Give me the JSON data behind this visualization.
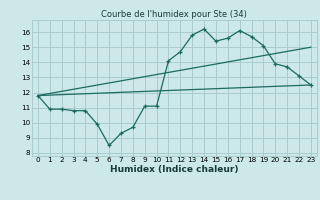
{
  "title": "Courbe de l'humidex pour Ste (34)",
  "xlabel": "Humidex (Indice chaleur)",
  "xlim": [
    -0.5,
    23.5
  ],
  "ylim": [
    7.8,
    16.8
  ],
  "yticks": [
    8,
    9,
    10,
    11,
    12,
    13,
    14,
    15,
    16
  ],
  "xticks": [
    0,
    1,
    2,
    3,
    4,
    5,
    6,
    7,
    8,
    9,
    10,
    11,
    12,
    13,
    14,
    15,
    16,
    17,
    18,
    19,
    20,
    21,
    22,
    23
  ],
  "bg_color": "#cce8e8",
  "grid_color": "#aacccc",
  "line_color": "#1a6b60",
  "line1_x": [
    0,
    1,
    2,
    3,
    4,
    5,
    6,
    7,
    8,
    9,
    10,
    11,
    12,
    13,
    14,
    15,
    16,
    17,
    18,
    19,
    20,
    21,
    22,
    23
  ],
  "line1_y": [
    11.8,
    10.9,
    10.9,
    10.8,
    10.8,
    9.9,
    8.5,
    9.3,
    9.7,
    11.1,
    11.1,
    14.1,
    14.7,
    15.8,
    16.2,
    15.4,
    15.6,
    16.1,
    15.7,
    15.1,
    13.9,
    13.7,
    13.1,
    12.5
  ],
  "line2_x": [
    0,
    23
  ],
  "line2_y": [
    11.8,
    12.5
  ],
  "line3_x": [
    0,
    23
  ],
  "line3_y": [
    11.8,
    15.0
  ],
  "title_fontsize": 6.0,
  "xlabel_fontsize": 6.5,
  "tick_fontsize": 5.2
}
